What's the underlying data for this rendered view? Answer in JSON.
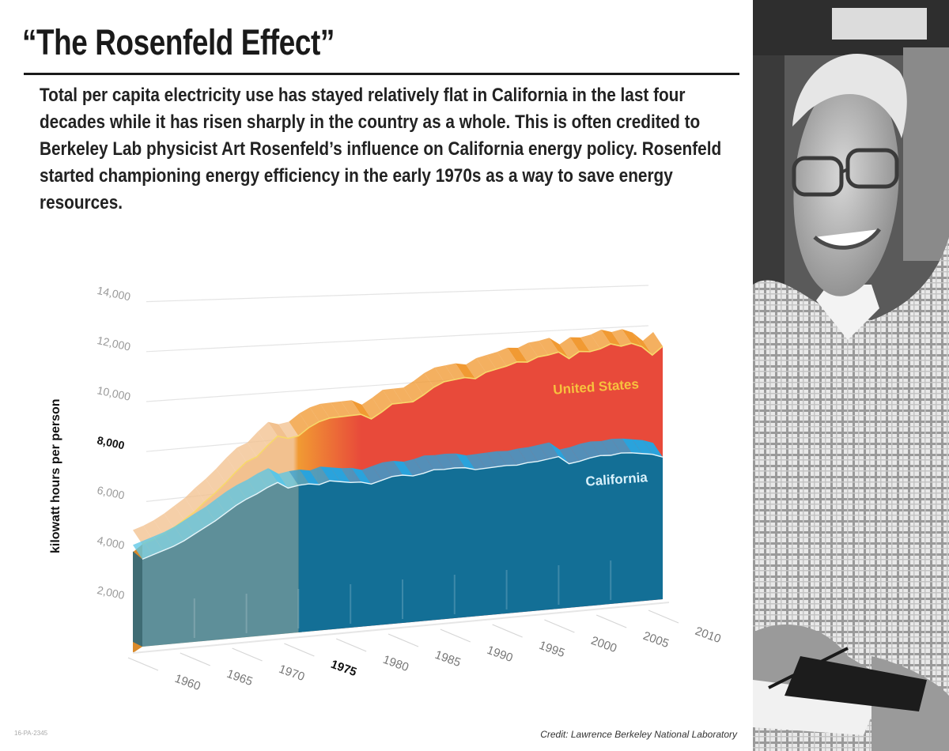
{
  "title": "“The Rosenfeld Effect”",
  "subtitle": "Total per capita electricity use has stayed relatively flat in California in the last four decades while it has risen sharply in the country as a whole. This is often credited to Berkeley Lab physicist Art Rosenfeld’s influence on California energy policy. Rosenfeld started championing energy efficiency in the early 1970s as a way to save energy resources.",
  "credit": "Credit: Lawrence Berkeley National Laboratory",
  "image_code": "16-PA-2345",
  "colors": {
    "us_early": "#f2c18f",
    "us_top": "#f19a33",
    "us_front": "#e84a3a",
    "ca_early": "#5e8f99",
    "ca_top": "#2aa3dc",
    "ca_front": "#136f96",
    "us_label": "#f7c23e",
    "ca_label": "#d9f1fb"
  },
  "chart_data": {
    "type": "area",
    "x": [
      1960,
      1961,
      1962,
      1963,
      1964,
      1965,
      1966,
      1967,
      1968,
      1969,
      1970,
      1971,
      1972,
      1973,
      1974,
      1975,
      1976,
      1977,
      1978,
      1979,
      1980,
      1981,
      1982,
      1983,
      1984,
      1985,
      1986,
      1987,
      1988,
      1989,
      1990,
      1991,
      1992,
      1993,
      1994,
      1995,
      1996,
      1997,
      1998,
      1999,
      2000,
      2001,
      2002,
      2003,
      2004,
      2005,
      2006,
      2007,
      2008,
      2009,
      2010
    ],
    "series": [
      {
        "name": "United States",
        "values": [
          4100,
          4250,
          4450,
          4700,
          5000,
          5300,
          5700,
          6050,
          6450,
          6900,
          7300,
          7500,
          7950,
          8350,
          8250,
          8350,
          8700,
          8950,
          9100,
          9150,
          9200,
          9250,
          9050,
          9350,
          9700,
          9750,
          9800,
          10100,
          10450,
          10700,
          10800,
          10900,
          10850,
          11150,
          11300,
          11450,
          11650,
          11650,
          11900,
          12000,
          12150,
          11850,
          12200,
          12200,
          12350,
          12600,
          12500,
          12650,
          12500,
          12100,
          12550
        ]
      },
      {
        "name": "California",
        "values": [
          3500,
          3650,
          3800,
          3950,
          4150,
          4400,
          4650,
          4900,
          5200,
          5500,
          5750,
          5950,
          6200,
          6400,
          6150,
          6250,
          6300,
          6250,
          6400,
          6350,
          6300,
          6300,
          6200,
          6350,
          6500,
          6550,
          6500,
          6600,
          6750,
          6750,
          6800,
          6800,
          6700,
          6750,
          6800,
          6850,
          6850,
          6950,
          7000,
          7100,
          7200,
          6850,
          6950,
          7100,
          7200,
          7200,
          7300,
          7300,
          7250,
          7200,
          7050
        ]
      }
    ],
    "ylabel": "kilowatt hours per person",
    "ylim": [
      0,
      14000
    ],
    "yticks": [
      "2,000",
      "4,000",
      "6,000",
      "8,000",
      "10,000",
      "12,000",
      "14,000"
    ],
    "ytick_values": [
      2000,
      4000,
      6000,
      8000,
      10000,
      12000,
      14000
    ],
    "xticks": [
      "1960",
      "1965",
      "1970",
      "1975",
      "1980",
      "1985",
      "1990",
      "1995",
      "2000",
      "2005",
      "2010"
    ],
    "xtick_values": [
      1960,
      1965,
      1970,
      1975,
      1980,
      1985,
      1990,
      1995,
      2000,
      2005,
      2010
    ],
    "highlight_year": 1975,
    "annotations": [
      "United States",
      "California"
    ],
    "grid": true
  }
}
